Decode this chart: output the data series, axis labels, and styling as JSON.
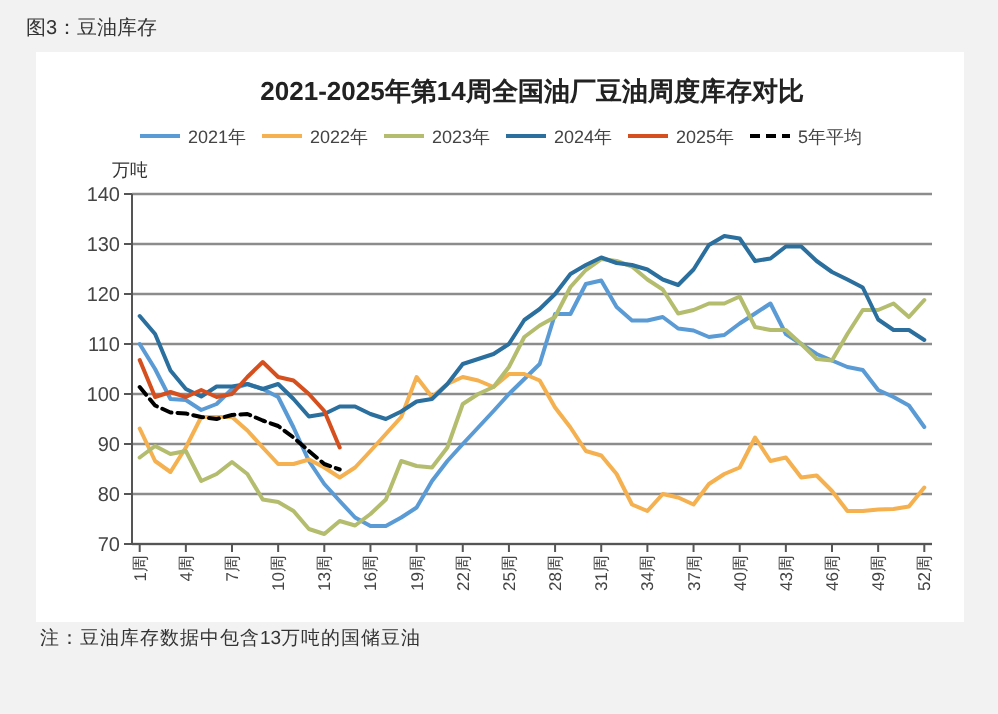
{
  "chart_data": {
    "type": "line",
    "title": "2021-2025年第14周全国油厂豆油周度库存对比",
    "ylabel": "万吨",
    "annotations": [
      "图3：豆油库存",
      "注：豆油库存数据中包含13万吨的国储豆油"
    ],
    "categories": [
      "1周",
      null,
      null,
      "4周",
      null,
      null,
      "7周",
      null,
      null,
      "10周",
      null,
      null,
      "13周",
      null,
      null,
      "16周",
      null,
      null,
      "19周",
      null,
      null,
      "22周",
      null,
      null,
      "25周",
      null,
      null,
      "28周",
      null,
      null,
      "31周",
      null,
      null,
      "34周",
      null,
      null,
      "37周",
      null,
      null,
      "40周",
      null,
      null,
      "43周",
      null,
      null,
      "46周",
      null,
      null,
      "49周",
      null,
      null,
      "52周"
    ],
    "ylim": [
      70,
      140
    ],
    "yticks": [
      70,
      80,
      90,
      100,
      110,
      120,
      130,
      140
    ],
    "grid": "y",
    "legend": "top",
    "series": [
      {
        "name": "2021年",
        "color": "#5b9bd5",
        "values": [
          110,
          105,
          99,
          98.8,
          96.8,
          98,
          101,
          102,
          101,
          99.4,
          93.3,
          86.6,
          82,
          78.6,
          75.3,
          73.6,
          73.6,
          75.3,
          77.3,
          82.6,
          86.6,
          90,
          93.3,
          96.6,
          100,
          103,
          106,
          116,
          116,
          122,
          122.7,
          117.4,
          114.7,
          114.7,
          115.4,
          113.1,
          112.7,
          111.4,
          111.8,
          114.1,
          116.1,
          118.1,
          112,
          110,
          108,
          106.7,
          105.4,
          104.8,
          100.8,
          99.4,
          97.7,
          93.4
        ]
      },
      {
        "name": "2022年",
        "color": "#f5b04f",
        "values": [
          93.1,
          86.6,
          84.4,
          89.3,
          95.4,
          95.4,
          95.4,
          92.7,
          89.3,
          86,
          86,
          86.9,
          85.3,
          83.3,
          85.3,
          88.6,
          92,
          95.4,
          103.4,
          99.4,
          102,
          103.4,
          102.7,
          101.4,
          104,
          104,
          102.7,
          97.3,
          93.3,
          88.6,
          87.7,
          84,
          77.9,
          76.6,
          80,
          79.3,
          77.9,
          82,
          84,
          85.3,
          91.3,
          86.6,
          87.3,
          83.3,
          83.7,
          80.6,
          76.6,
          76.6,
          76.9,
          77,
          77.5,
          81.3
        ]
      },
      {
        "name": "2023年",
        "color": "#b4bd6e",
        "values": [
          87.3,
          89.6,
          88,
          88.6,
          82.6,
          84,
          86.4,
          84,
          78.9,
          78.4,
          76.6,
          73,
          72,
          74.6,
          73.7,
          76,
          78.9,
          86.6,
          85.6,
          85.3,
          89.3,
          98,
          100,
          101.4,
          105.4,
          111.4,
          113.7,
          115.4,
          121.4,
          124.8,
          127,
          126.6,
          125.5,
          122.9,
          120.9,
          116.1,
          116.8,
          118.1,
          118.1,
          119.5,
          113.4,
          112.8,
          112.8,
          110,
          107,
          106.7,
          112,
          116.8,
          116.8,
          118.1,
          115.4,
          118.8
        ]
      },
      {
        "name": "2024年",
        "color": "#2a6f9e",
        "values": [
          115.6,
          112,
          104.7,
          101,
          99.5,
          101.5,
          101.5,
          102,
          101,
          102,
          99,
          95.5,
          96,
          97.5,
          97.5,
          96,
          95,
          96.5,
          98.5,
          99,
          102,
          106,
          107,
          108,
          110,
          114.8,
          117,
          120,
          124,
          125.8,
          127.3,
          126.2,
          125.8,
          124.9,
          122.9,
          121.8,
          124.9,
          129.8,
          131.6,
          131.1,
          126.6,
          127.1,
          129.5,
          129.5,
          126.6,
          124.4,
          122.9,
          121.3,
          114.9,
          112.8,
          112.8,
          110.8
        ]
      },
      {
        "name": "2025年",
        "color": "#d5501e",
        "values": [
          106.8,
          99.4,
          100.4,
          99.4,
          100.8,
          99.4,
          100,
          103.4,
          106.4,
          103.4,
          102.7,
          100,
          96.6,
          89.3,
          null,
          null,
          null,
          null,
          null,
          null,
          null,
          null,
          null,
          null,
          null,
          null,
          null,
          null,
          null,
          null,
          null,
          null,
          null,
          null,
          null,
          null,
          null,
          null,
          null,
          null,
          null,
          null,
          null,
          null,
          null,
          null,
          null,
          null,
          null,
          null,
          null,
          null
        ]
      },
      {
        "name": "5年平均",
        "color": "#000000",
        "line_style": "dashed",
        "values": [
          101.4,
          97.7,
          96.3,
          96.1,
          95.4,
          95,
          95.8,
          96,
          94.7,
          93.6,
          91.3,
          88.6,
          86,
          84.9,
          null,
          null,
          null,
          null,
          null,
          null,
          null,
          null,
          null,
          null,
          null,
          null,
          null,
          null,
          null,
          null,
          null,
          null,
          null,
          null,
          null,
          null,
          null,
          null,
          null,
          null,
          null,
          null,
          null,
          null,
          null,
          null,
          null,
          null,
          null,
          null,
          null,
          null
        ]
      }
    ]
  }
}
